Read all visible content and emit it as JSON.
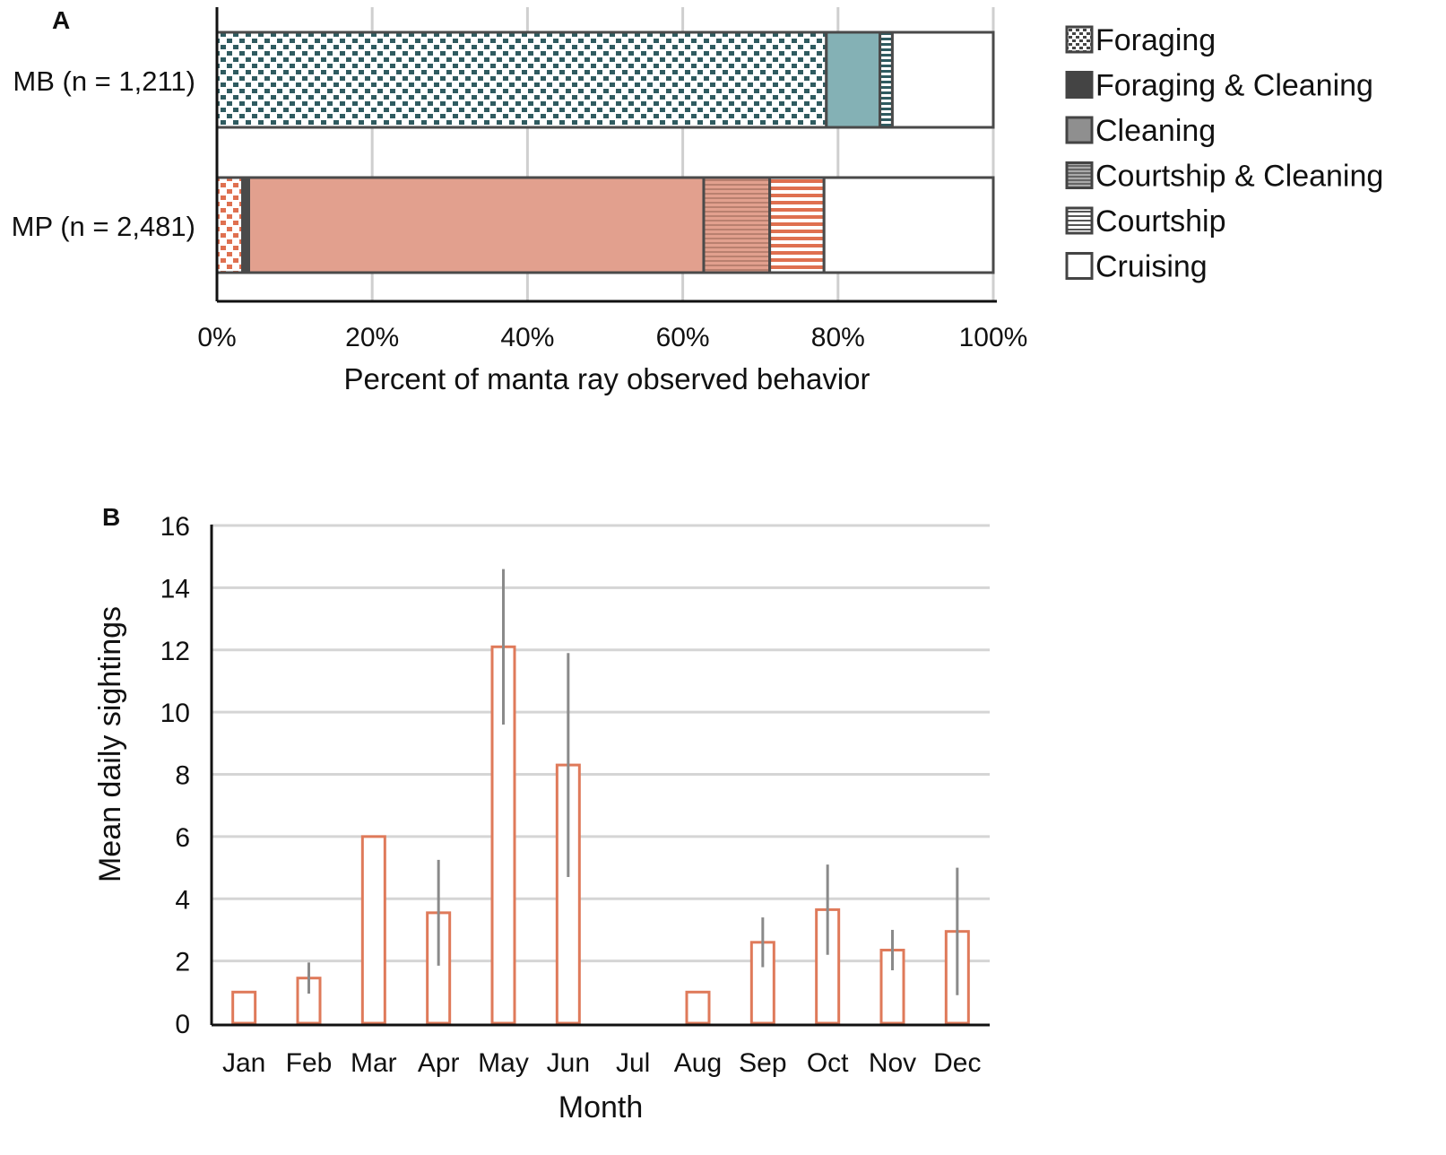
{
  "chart_data": [
    {
      "panel": "A",
      "type": "bar",
      "orientation": "horizontal",
      "stacked": true,
      "xlabel": "Percent of manta ray observed behavior",
      "xlim": [
        0,
        100
      ],
      "xticks": [
        "0%",
        "20%",
        "40%",
        "60%",
        "80%",
        "100%"
      ],
      "categories": [
        "MB (n = 1,211)",
        "MP (n = 2,481)"
      ],
      "series": [
        {
          "name": "Foraging",
          "values": [
            78.5,
            3.3
          ]
        },
        {
          "name": "Foraging & Cleaning",
          "values": [
            0,
            0.8
          ]
        },
        {
          "name": "Cleaning",
          "values": [
            6.9,
            58.6
          ]
        },
        {
          "name": "Courtship & Cleaning",
          "values": [
            0,
            8.5
          ]
        },
        {
          "name": "Courtship",
          "values": [
            1.6,
            7.0
          ]
        },
        {
          "name": "Cruising",
          "values": [
            13.0,
            21.8
          ]
        }
      ],
      "colors": {
        "MB": "#2f5b60",
        "MB_light": "#84b1b5",
        "MP": "#df7050",
        "MP_light": "#e2a08e",
        "edge": "#4a4a4a"
      },
      "legend_position": "right"
    },
    {
      "panel": "B",
      "type": "bar",
      "xlabel": "Month",
      "ylabel": "Mean daily sightings",
      "ylim": [
        0,
        16
      ],
      "yticks": [
        "0",
        "2",
        "4",
        "6",
        "8",
        "10",
        "12",
        "14",
        "16"
      ],
      "categories": [
        "Jan",
        "Feb",
        "Mar",
        "Apr",
        "May",
        "Jun",
        "Jul",
        "Aug",
        "Sep",
        "Oct",
        "Nov",
        "Dec"
      ],
      "values": [
        1.0,
        1.45,
        6.0,
        3.55,
        12.1,
        8.3,
        null,
        1.0,
        2.6,
        3.65,
        2.35,
        2.95
      ],
      "error": [
        null,
        0.5,
        null,
        1.7,
        2.5,
        3.6,
        null,
        null,
        0.8,
        1.45,
        0.65,
        2.05
      ],
      "colors": {
        "bar_edge": "#df7a5a",
        "error": "#8a8a8a",
        "grid": "#d5d5d5"
      }
    }
  ]
}
